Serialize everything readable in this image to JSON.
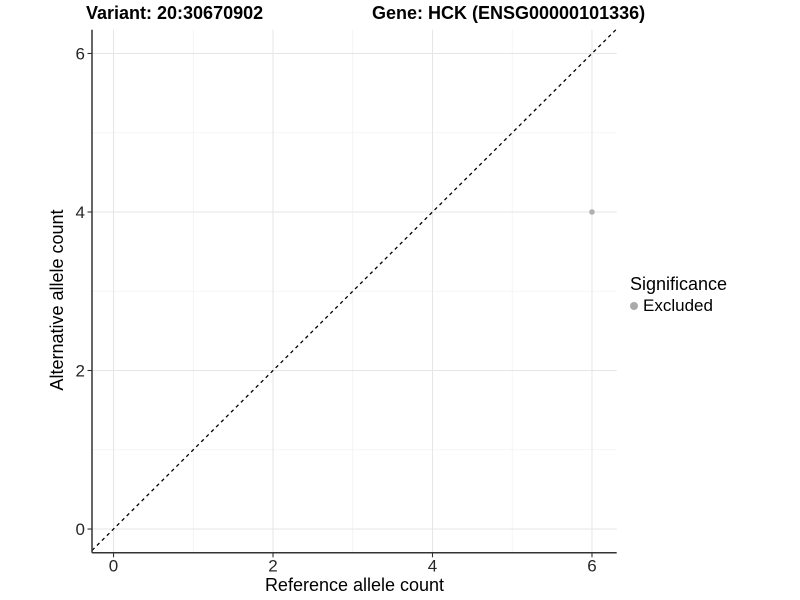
{
  "chart_data": {
    "type": "scatter",
    "titles": {
      "left": "Variant: 20:30670902",
      "right": "Gene: HCK (ENSG00000101336)"
    },
    "xlabel": "Reference allele count",
    "ylabel": "Alternative allele count",
    "xlim": [
      -0.27,
      6.31
    ],
    "ylim": [
      -0.3,
      6.3
    ],
    "xticks": [
      0,
      2,
      4,
      6
    ],
    "yticks": [
      0,
      2,
      4,
      6
    ],
    "xticks_minor": [
      1,
      3,
      5
    ],
    "yticks_minor": [
      1,
      3,
      5
    ],
    "grid": "major+minor",
    "reference_line": {
      "style": "dashed",
      "slope": 1,
      "intercept": 0,
      "color": "#000000"
    },
    "series": [
      {
        "name": "Excluded",
        "color": "#b0b0b0",
        "points": [
          {
            "x": 6,
            "y": 4
          }
        ]
      }
    ],
    "legend": {
      "title": "Significance",
      "position": "right",
      "items": [
        {
          "label": "Excluded",
          "color": "#aaaaaa",
          "marker": "circle"
        }
      ]
    },
    "colors": {
      "grid_major": "#e6e6e6",
      "grid_minor": "#f2f2f2",
      "axis": "#333333",
      "tick_label": "#262626",
      "background": "#ffffff"
    }
  }
}
